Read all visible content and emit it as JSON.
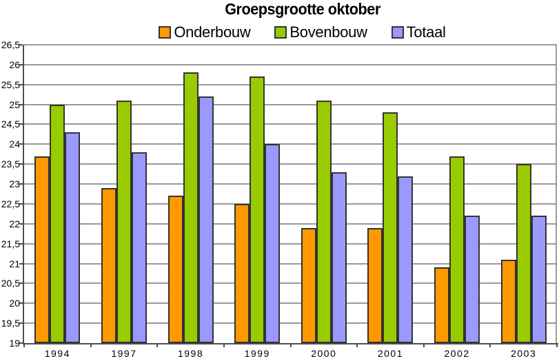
{
  "page": {
    "background": "#FFFFFF"
  },
  "chart_data": {
    "type": "bar",
    "title": "Groepsgrootte oktober",
    "categories": [
      "1994",
      "1997",
      "1998",
      "1999",
      "2000",
      "2001",
      "2002",
      "2003"
    ],
    "series": [
      {
        "name": "Onderbouw",
        "color": "#FF9900",
        "values": [
          23.7,
          22.9,
          22.7,
          22.5,
          21.9,
          21.9,
          20.9,
          21.1
        ]
      },
      {
        "name": "Bovenbouw",
        "color": "#99CC00",
        "values": [
          25.0,
          25.1,
          25.8,
          25.7,
          25.1,
          24.8,
          23.7,
          23.5
        ]
      },
      {
        "name": "Totaal",
        "color": "#9999FF",
        "values": [
          24.3,
          23.8,
          25.2,
          24.0,
          23.3,
          23.2,
          22.2,
          22.2
        ]
      }
    ],
    "xlabel": "",
    "ylabel": "",
    "ylim": [
      19,
      26.5
    ],
    "ytick_step": 0.5,
    "ytick_labels": [
      "19",
      "19,5",
      "20",
      "20,5",
      "21",
      "21,5",
      "22",
      "22,5",
      "23",
      "23,5",
      "24",
      "24,5",
      "25",
      "25,5",
      "26",
      "26,5"
    ],
    "decimal_separator": ",",
    "grid": true,
    "legend_position": "top",
    "colors": {
      "grid": "#999999",
      "axis": "#4D4D4D",
      "bar_border": "#333333",
      "plot_right_border": "#9A9A9A",
      "text": "#000000",
      "background": "#FFFFFF"
    }
  }
}
